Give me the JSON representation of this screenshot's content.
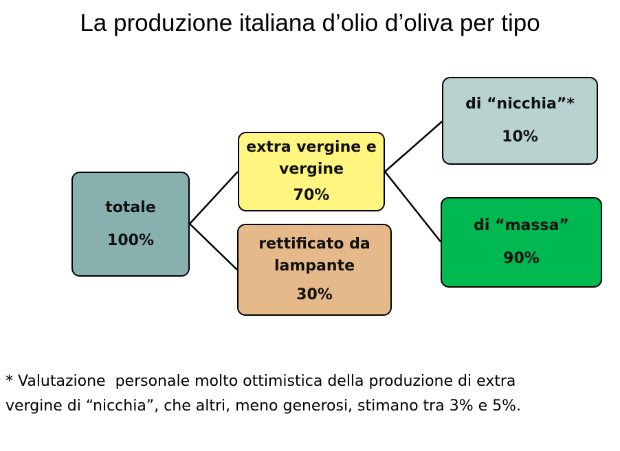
{
  "title": "La produzione italiana d’olio d’oliva per tipo",
  "nodes": {
    "totale": {
      "label": "totale",
      "pct": "100%",
      "color": "#87B0AF"
    },
    "extra": {
      "label1": "extra vergine e",
      "label2": "vergine",
      "pct": "70%",
      "color": "#FFF57F"
    },
    "rettificato": {
      "label1": "rettificato da",
      "label2": "lampante",
      "pct": "30%",
      "color": "#E6B98B"
    },
    "nicchia": {
      "label": "di “nicchia”*",
      "pct": "10%",
      "color": "#B8D2D0"
    },
    "massa": {
      "label": "di “massa”",
      "pct": "90%",
      "color": "#00B850"
    }
  },
  "edges": [
    [
      "totale",
      "extra"
    ],
    [
      "totale",
      "rettificato"
    ],
    [
      "extra",
      "nicchia"
    ],
    [
      "extra",
      "massa"
    ]
  ],
  "footnote": {
    "line1": "* Valutazione  personale molto ottimistica della produzione di extra",
    "line2": "vergine di “nicchia”, che altri, meno generosi, stimano tra 3% e 5%."
  }
}
